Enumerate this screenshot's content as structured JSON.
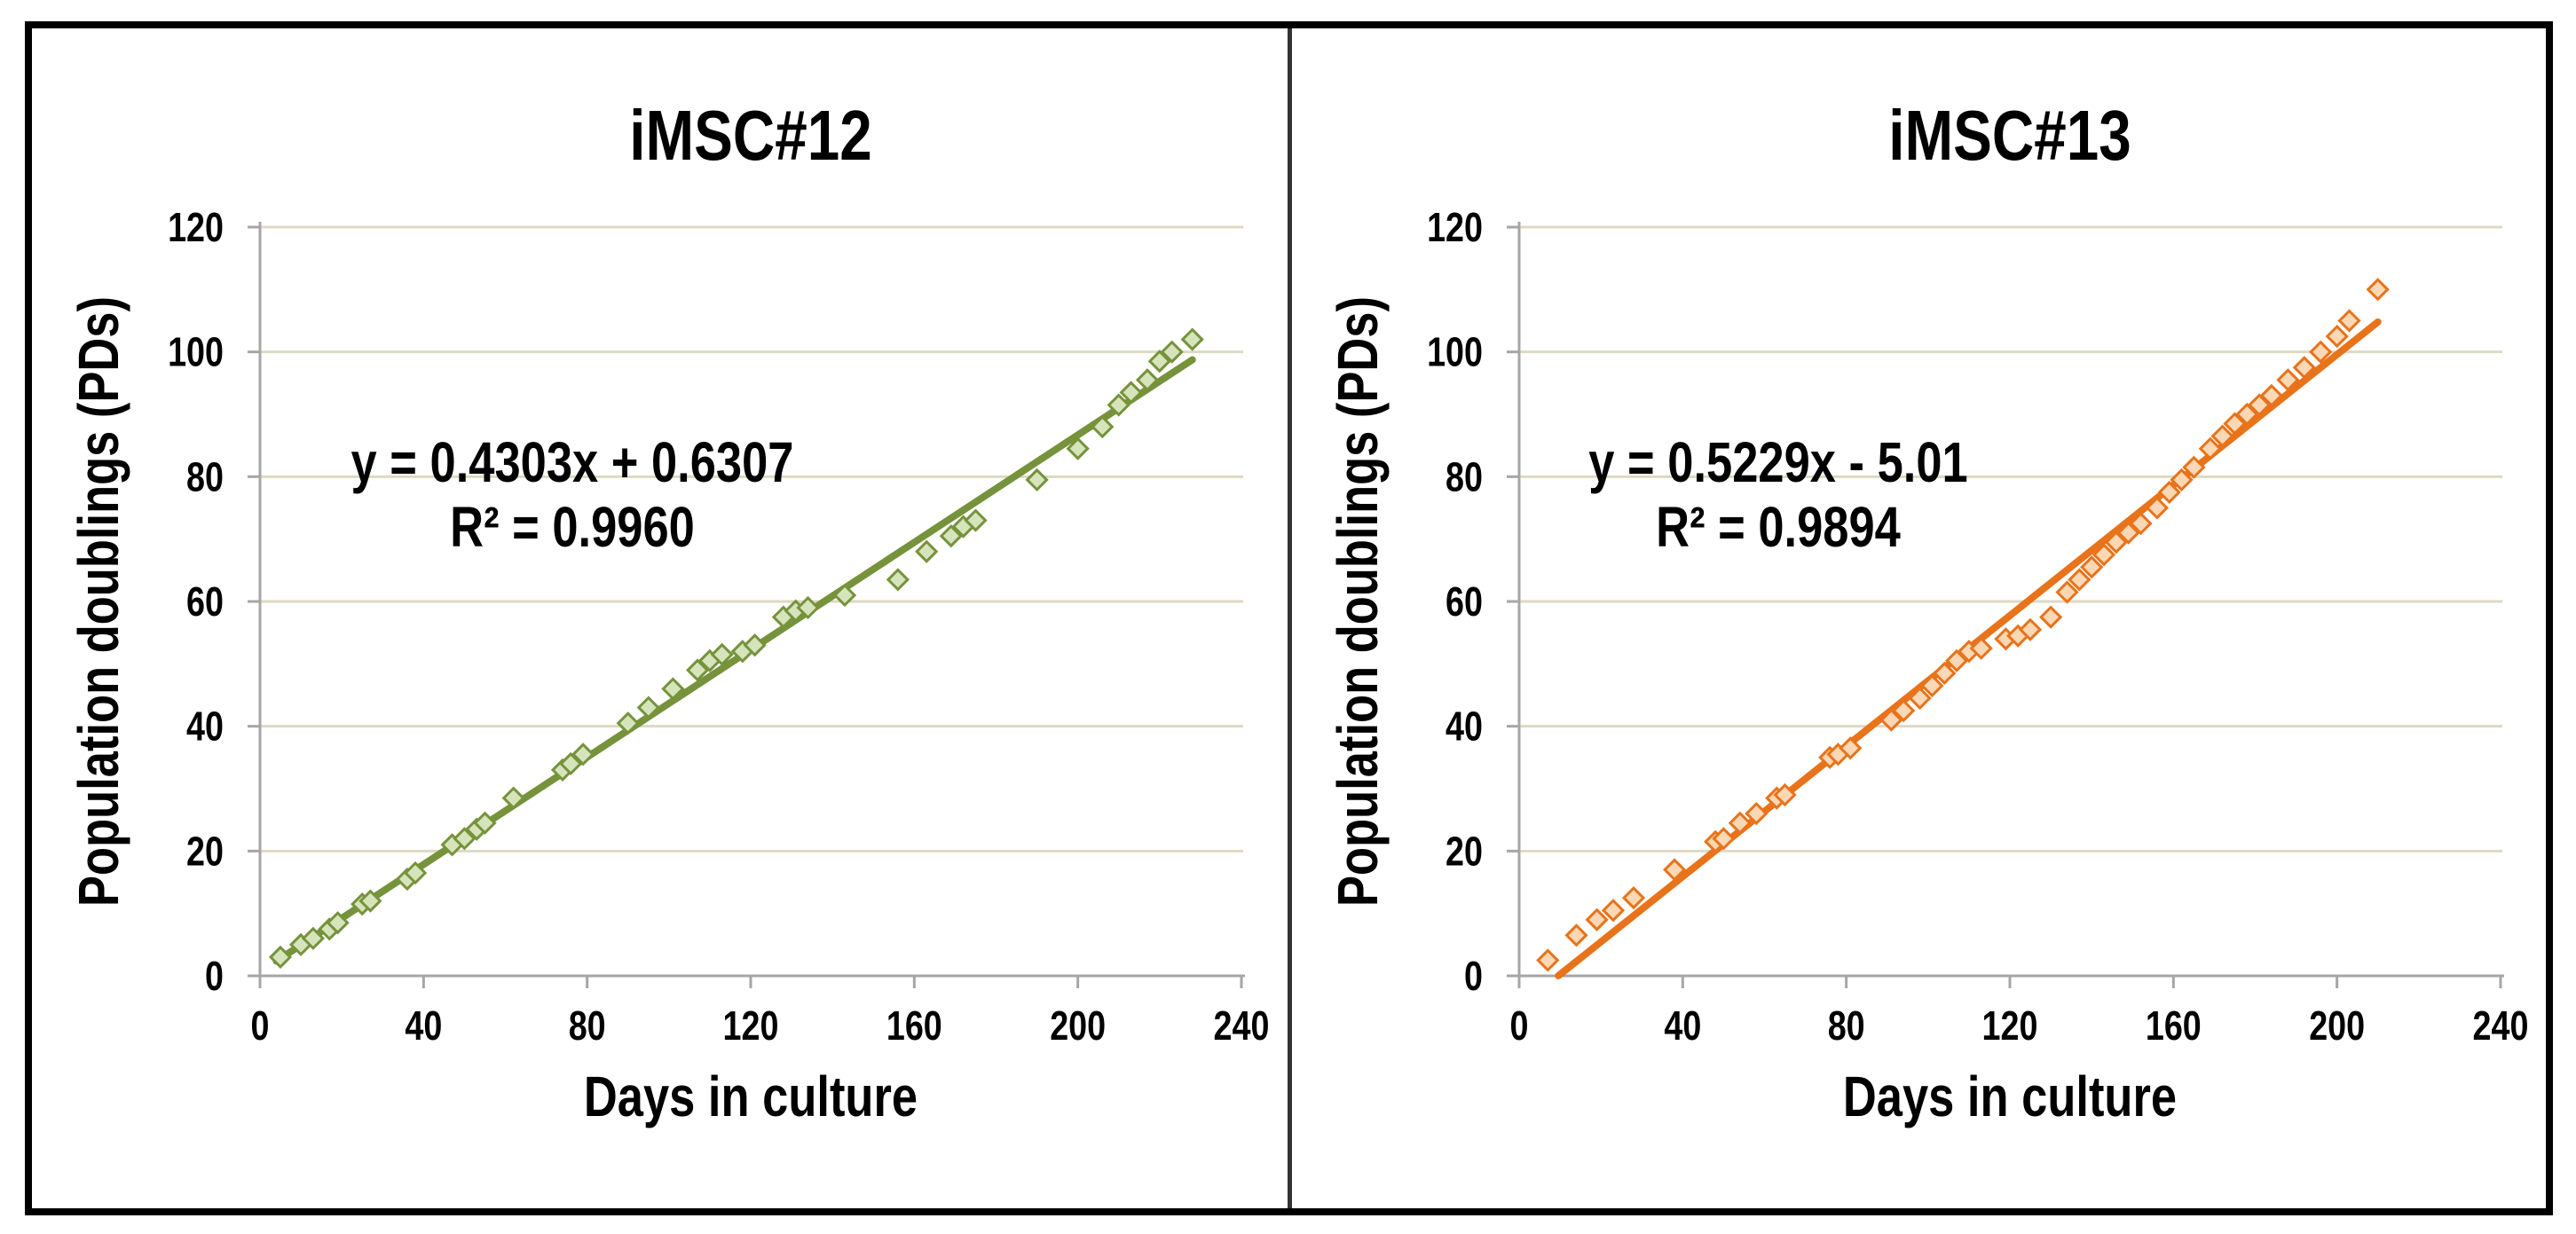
{
  "figure": {
    "background": "#ffffff",
    "border_color": "#000000",
    "divider_color": "#333333",
    "grid_color": "#DDD9C3",
    "axis_color": "#A6A6A6",
    "text_color": "#000000"
  },
  "chart_data": [
    {
      "type": "scatter",
      "title": "iMSC#12",
      "xlabel": "Days in culture",
      "ylabel": "Population doublings (PDs)",
      "annotation_equation": "y = 0.4303x + 0.6307",
      "annotation_r2": "R² = 0.9960",
      "xlim": [
        0,
        240
      ],
      "ylim": [
        0,
        120
      ],
      "xticks": [
        0,
        40,
        80,
        120,
        160,
        200,
        240
      ],
      "yticks": [
        0,
        20,
        40,
        60,
        80,
        100,
        120
      ],
      "grid": "horizontal",
      "legend": "none",
      "marker": "diamond",
      "colors": {
        "line": "#76933C",
        "marker_fill": "#D6E4BC",
        "marker_stroke": "#76933C"
      },
      "trendline": {
        "slope": 0.4303,
        "intercept": 0.6307,
        "x_start": 4,
        "x_end": 228
      },
      "points": [
        [
          5,
          3
        ],
        [
          10,
          5
        ],
        [
          13,
          6
        ],
        [
          17,
          7.5
        ],
        [
          19,
          8.5
        ],
        [
          25,
          11.5
        ],
        [
          27,
          12
        ],
        [
          36,
          15.5
        ],
        [
          38,
          16.5
        ],
        [
          47,
          21
        ],
        [
          50,
          22
        ],
        [
          53,
          23.5
        ],
        [
          55,
          24.5
        ],
        [
          62,
          28.5
        ],
        [
          74,
          33
        ],
        [
          76,
          34
        ],
        [
          79,
          35.5
        ],
        [
          90,
          40.5
        ],
        [
          95,
          43
        ],
        [
          101,
          46
        ],
        [
          107,
          49
        ],
        [
          110,
          50.5
        ],
        [
          113,
          51.5
        ],
        [
          118,
          52
        ],
        [
          121,
          53
        ],
        [
          128,
          57.5
        ],
        [
          131,
          58.5
        ],
        [
          134,
          59
        ],
        [
          143,
          61
        ],
        [
          156,
          63.5
        ],
        [
          163,
          68
        ],
        [
          169,
          70.5
        ],
        [
          172,
          72
        ],
        [
          175,
          73
        ],
        [
          190,
          79.5
        ],
        [
          200,
          84.5
        ],
        [
          206,
          88
        ],
        [
          210,
          91.5
        ],
        [
          213,
          93.5
        ],
        [
          217,
          95.5
        ],
        [
          220,
          98.5
        ],
        [
          223,
          100
        ],
        [
          228,
          102
        ]
      ]
    },
    {
      "type": "scatter",
      "title": "iMSC#13",
      "xlabel": "Days in culture",
      "ylabel": "Population doublings (PDs)",
      "annotation_equation": "y = 0.5229x - 5.01",
      "annotation_r2": "R² = 0.9894",
      "xlim": [
        0,
        240
      ],
      "ylim": [
        0,
        120
      ],
      "xticks": [
        0,
        40,
        80,
        120,
        160,
        200,
        240
      ],
      "yticks": [
        0,
        20,
        40,
        60,
        80,
        100,
        120
      ],
      "grid": "horizontal",
      "legend": "none",
      "marker": "diamond",
      "colors": {
        "line": "#E8731A",
        "marker_fill": "#FAD7B5",
        "marker_stroke": "#E8731A"
      },
      "trendline": {
        "slope": 0.5229,
        "intercept": -5.01,
        "x_start": 9.6,
        "x_end": 210
      },
      "points": [
        [
          7,
          2.5
        ],
        [
          14,
          6.5
        ],
        [
          19,
          9
        ],
        [
          23,
          10.5
        ],
        [
          28,
          12.5
        ],
        [
          38,
          17
        ],
        [
          48,
          21.5
        ],
        [
          50,
          22
        ],
        [
          54,
          24.5
        ],
        [
          58,
          26
        ],
        [
          63,
          28.5
        ],
        [
          65,
          29
        ],
        [
          76,
          35
        ],
        [
          78,
          35.5
        ],
        [
          81,
          36.5
        ],
        [
          91,
          41
        ],
        [
          94,
          42.5
        ],
        [
          98,
          44.5
        ],
        [
          101,
          46.5
        ],
        [
          104,
          48.5
        ],
        [
          107,
          50.5
        ],
        [
          110,
          52
        ],
        [
          113,
          52.5
        ],
        [
          119,
          54
        ],
        [
          122,
          54.5
        ],
        [
          125,
          55.5
        ],
        [
          130,
          57.5
        ],
        [
          134,
          61.5
        ],
        [
          137,
          63.5
        ],
        [
          140,
          65.5
        ],
        [
          143,
          67.5
        ],
        [
          146,
          69.5
        ],
        [
          149,
          71
        ],
        [
          152,
          72.5
        ],
        [
          156,
          75
        ],
        [
          159,
          77.5
        ],
        [
          162,
          79.5
        ],
        [
          165,
          81.5
        ],
        [
          169,
          84.5
        ],
        [
          172,
          86.5
        ],
        [
          175,
          88.5
        ],
        [
          178,
          90
        ],
        [
          181,
          91.5
        ],
        [
          184,
          93
        ],
        [
          188,
          95.5
        ],
        [
          192,
          97.5
        ],
        [
          196,
          100
        ],
        [
          200,
          102.5
        ],
        [
          203,
          105
        ],
        [
          210,
          110
        ]
      ]
    }
  ]
}
